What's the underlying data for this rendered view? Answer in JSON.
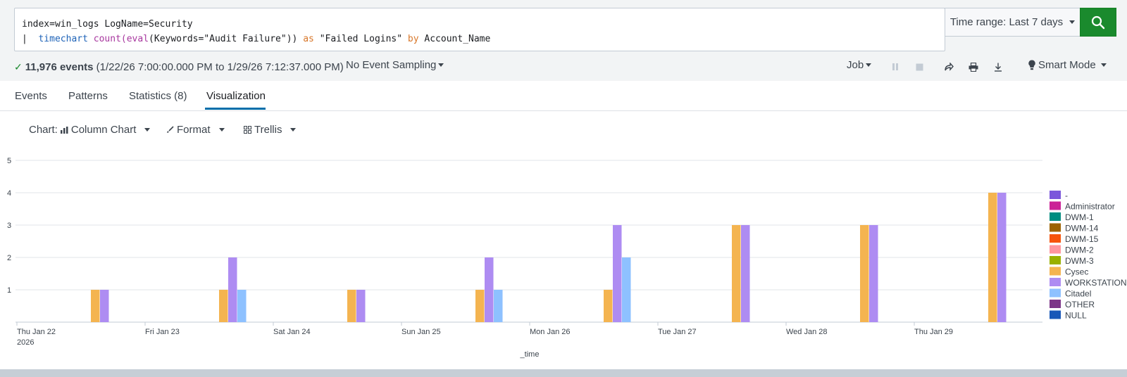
{
  "search": {
    "line1": "index=win_logs LogName=Security",
    "line2_pipe": "|",
    "line2_cmd": "timechart",
    "line2_fn1": "count(",
    "line2_fn2": "eval",
    "line2_args": "(Keywords=\"Audit Failure\"))",
    "line2_as": "as",
    "line2_alias": "\"Failed Logins\"",
    "line2_by": "by",
    "line2_field": "Account_Name"
  },
  "time_range": {
    "label": "Time range: Last 7 days"
  },
  "status": {
    "count": "11,976 events",
    "range": "(1/22/26 7:00:00.000 PM to 1/29/26 7:12:37.000 PM)",
    "sampling": "No Event Sampling",
    "job": "Job",
    "mode": "Smart Mode"
  },
  "tabs": [
    {
      "label": "Events"
    },
    {
      "label": "Patterns"
    },
    {
      "label": "Statistics (8)"
    },
    {
      "label": "Visualization"
    }
  ],
  "viz_toolbar": {
    "chart_prefix": "Chart:",
    "chart_type": "Column Chart",
    "format": "Format",
    "trellis": "Trellis"
  },
  "chart_data": {
    "type": "bar",
    "xlabel": "_time",
    "ylim": [
      0,
      5
    ],
    "yticks": [
      1,
      2,
      3,
      4,
      5
    ],
    "categories": [
      "Thu Jan 22",
      "Fri Jan 23",
      "Sat Jan 24",
      "Sun Jan 25",
      "Mon Jan 26",
      "Tue Jan 27",
      "Wed Jan 28",
      "Thu Jan 29"
    ],
    "first_tick_year": "2026",
    "series": [
      {
        "name": "-",
        "color": "#7b56db",
        "values": [
          0,
          0,
          0,
          0,
          0,
          0,
          0,
          0
        ]
      },
      {
        "name": "Administrator",
        "color": "#cb2196",
        "values": [
          0,
          0,
          0,
          0,
          0,
          0,
          0,
          0
        ]
      },
      {
        "name": "DWM-1",
        "color": "#008c80",
        "values": [
          0,
          0,
          0,
          0,
          0,
          0,
          0,
          0
        ]
      },
      {
        "name": "DWM-14",
        "color": "#9d6300",
        "values": [
          0,
          0,
          0,
          0,
          0,
          0,
          0,
          0
        ]
      },
      {
        "name": "DWM-15",
        "color": "#f6540b",
        "values": [
          0,
          0,
          0,
          0,
          0,
          0,
          0,
          0
        ]
      },
      {
        "name": "DWM-2",
        "color": "#ff969e",
        "values": [
          0,
          0,
          0,
          0,
          0,
          0,
          0,
          0
        ]
      },
      {
        "name": "DWM-3",
        "color": "#99b100",
        "values": [
          0,
          0,
          0,
          0,
          0,
          0,
          0,
          0
        ]
      },
      {
        "name": "Cysec",
        "color": "#f4b450",
        "values": [
          1,
          1,
          1,
          1,
          1,
          3,
          3,
          4
        ]
      },
      {
        "name": "WORKSTATION",
        "color": "#ae8cf2",
        "values": [
          1,
          2,
          1,
          2,
          3,
          3,
          3,
          4
        ]
      },
      {
        "name": "Citadel",
        "color": "#8ec1ff",
        "values": [
          0,
          1,
          0,
          1,
          2,
          0,
          0,
          0
        ]
      },
      {
        "name": "OTHER",
        "color": "#7c3588",
        "values": [
          0,
          0,
          0,
          0,
          0,
          0,
          0,
          0
        ]
      },
      {
        "name": "NULL",
        "color": "#1958b8",
        "values": [
          0,
          0,
          0,
          0,
          0,
          0,
          0,
          0
        ]
      }
    ]
  }
}
